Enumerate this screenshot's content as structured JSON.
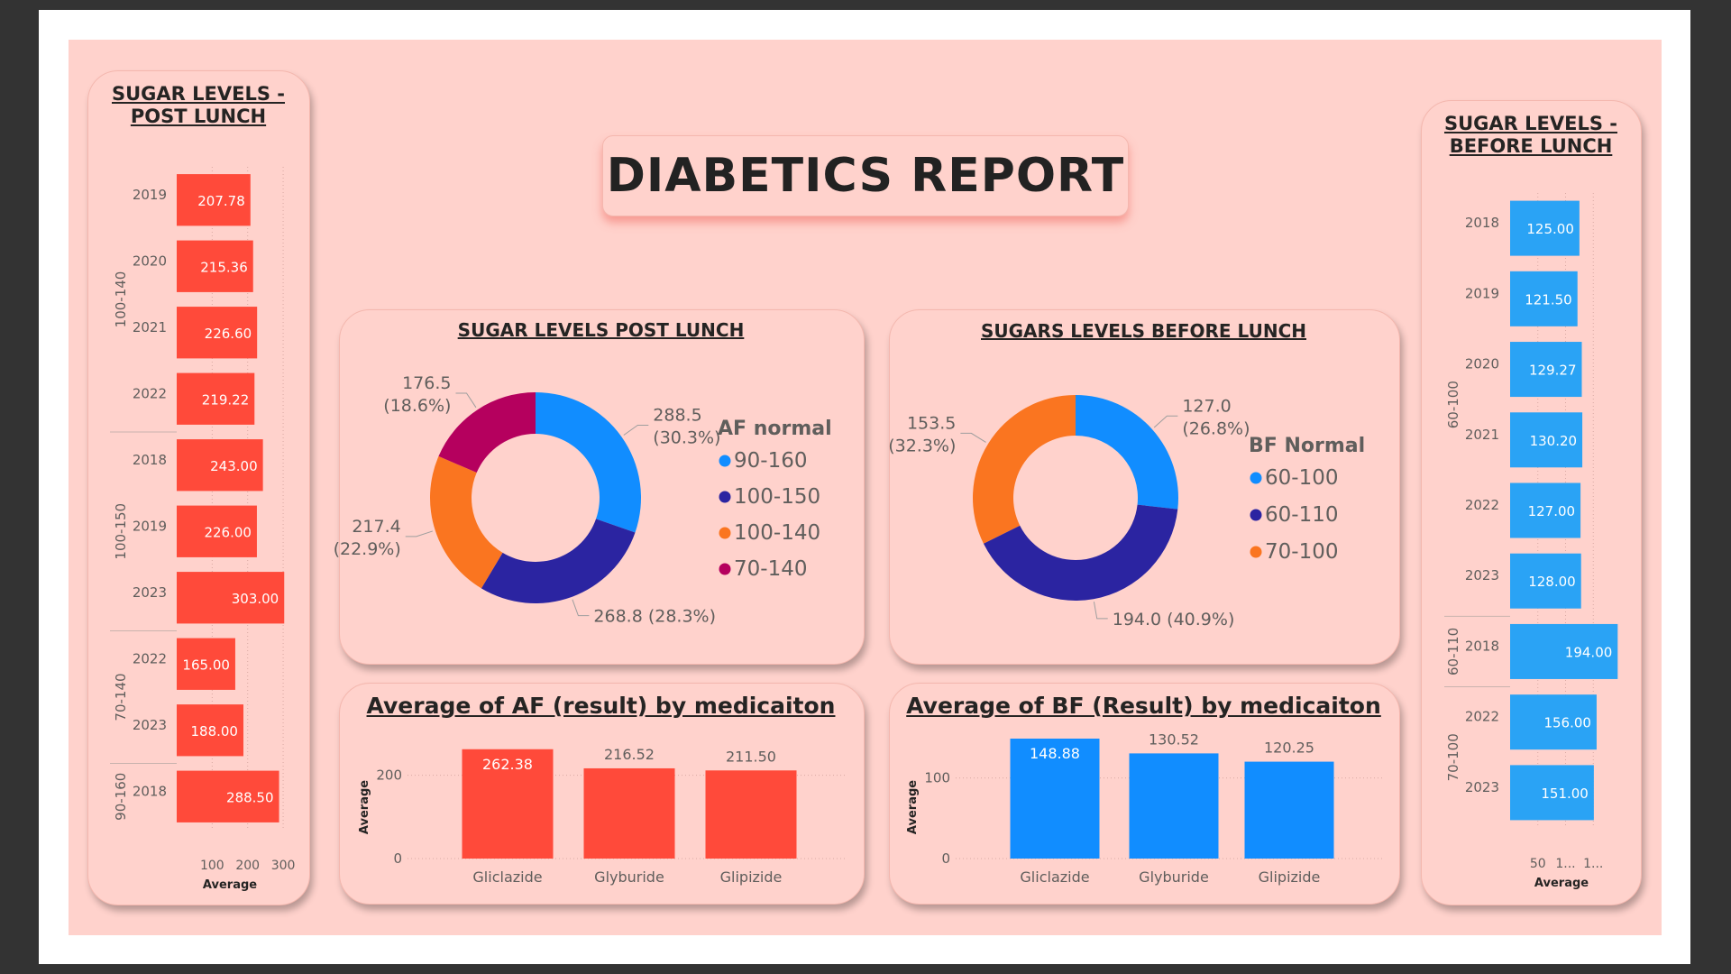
{
  "title": "DIABETICS REPORT",
  "colors": {
    "canvas": "#ffd2cc",
    "red": "#ff4a3a",
    "blue": "#2aa3f5",
    "c90_160": "#118dff",
    "c100_150": "#2b24a1",
    "c100_140": "#fa7520",
    "c70_140": "#b5005e"
  },
  "left_panel": {
    "title_line1": "SUGAR LEVELS -",
    "title_line2": "POST LUNCH"
  },
  "right_panel": {
    "title_line1": "SUGAR LEVELS -",
    "title_line2": "BEFORE LUNCH"
  },
  "donut_af": {
    "title": "SUGAR LEVELS POST LUNCH"
  },
  "donut_bf": {
    "title": "SUGARS LEVELS BEFORE LUNCH"
  },
  "bar_af": {
    "title": "Average of AF (result) by medicaiton"
  },
  "bar_bf": {
    "title": "Average of BF (Result) by medicaiton"
  },
  "chart_data": [
    {
      "id": "post_lunch_by_year",
      "type": "bar",
      "orientation": "horizontal",
      "title": "SUGAR LEVELS - POST LUNCH",
      "xlabel": "Average",
      "xticks": [
        "100",
        "200",
        "300"
      ],
      "xlim": [
        0,
        310
      ],
      "groups": [
        {
          "name": "100-140",
          "rows": [
            {
              "year": "2019",
              "value": 207.78,
              "label": "207.78"
            },
            {
              "year": "2020",
              "value": 215.36,
              "label": "215.36"
            },
            {
              "year": "2021",
              "value": 226.6,
              "label": "226.60"
            },
            {
              "year": "2022",
              "value": 219.22,
              "label": "219.22"
            }
          ]
        },
        {
          "name": "100-150",
          "rows": [
            {
              "year": "2018",
              "value": 243.0,
              "label": "243.00"
            },
            {
              "year": "2019",
              "value": 226.0,
              "label": "226.00"
            },
            {
              "year": "2023",
              "value": 303.0,
              "label": "303.00"
            }
          ]
        },
        {
          "name": "70-140",
          "rows": [
            {
              "year": "2022",
              "value": 165.0,
              "label": "165.00"
            },
            {
              "year": "2023",
              "value": 188.0,
              "label": "188.00"
            }
          ]
        },
        {
          "name": "90-160",
          "rows": [
            {
              "year": "2018",
              "value": 288.5,
              "label": "288.50"
            }
          ]
        }
      ]
    },
    {
      "id": "before_lunch_by_year",
      "type": "bar",
      "orientation": "horizontal",
      "title": "SUGAR LEVELS - BEFORE LUNCH",
      "xlabel": "Average",
      "xticks": [
        "50",
        "1...",
        "1..."
      ],
      "xlim": [
        0,
        200
      ],
      "groups": [
        {
          "name": "60-100",
          "rows": [
            {
              "year": "2018",
              "value": 125.0,
              "label": "125.00"
            },
            {
              "year": "2019",
              "value": 121.5,
              "label": "121.50"
            },
            {
              "year": "2020",
              "value": 129.27,
              "label": "129.27"
            },
            {
              "year": "2021",
              "value": 130.2,
              "label": "130.20"
            },
            {
              "year": "2022",
              "value": 127.0,
              "label": "127.00"
            },
            {
              "year": "2023",
              "value": 128.0,
              "label": "128.00"
            }
          ]
        },
        {
          "name": "60-110",
          "rows": [
            {
              "year": "2018",
              "value": 194.0,
              "label": "194.00"
            }
          ]
        },
        {
          "name": "70-100",
          "rows": [
            {
              "year": "2022",
              "value": 156.0,
              "label": "156.00"
            },
            {
              "year": "2023",
              "value": 151.0,
              "label": "151.00"
            }
          ]
        }
      ]
    },
    {
      "id": "af_donut",
      "type": "pie",
      "title": "SUGAR LEVELS POST LUNCH",
      "legend_title": "AF normal",
      "slices": [
        {
          "name": "90-160",
          "value": 288.5,
          "pct": "30.3%",
          "color": "#118dff",
          "label1": "288.5",
          "label2": "(30.3%)"
        },
        {
          "name": "100-150",
          "value": 268.8,
          "pct": "28.3%",
          "color": "#2b24a1",
          "label1": "268.8 (28.3%)",
          "label2": ""
        },
        {
          "name": "100-140",
          "value": 217.4,
          "pct": "22.9%",
          "color": "#fa7520",
          "label1": "217.4",
          "label2": "(22.9%)"
        },
        {
          "name": "70-140",
          "value": 176.5,
          "pct": "18.6%",
          "color": "#b5005e",
          "label1": "176.5",
          "label2": "(18.6%)"
        }
      ]
    },
    {
      "id": "bf_donut",
      "type": "pie",
      "title": "SUGARS LEVELS BEFORE LUNCH",
      "legend_title": "BF Normal",
      "slices": [
        {
          "name": "60-100",
          "value": 127.0,
          "pct": "26.8%",
          "color": "#118dff",
          "label1": "127.0",
          "label2": "(26.8%)"
        },
        {
          "name": "60-110",
          "value": 194.0,
          "pct": "40.9%",
          "color": "#2b24a1",
          "label1": "194.0 (40.9%)",
          "label2": ""
        },
        {
          "name": "70-100",
          "value": 153.5,
          "pct": "32.3%",
          "color": "#fa7520",
          "label1": "153.5",
          "label2": "(32.3%)"
        }
      ]
    },
    {
      "id": "af_by_medication",
      "type": "bar",
      "title": "Average of AF (result) by medicaiton",
      "ylabel": "Average",
      "categories": [
        "Gliclazide",
        "Glyburide",
        "Glipizide"
      ],
      "values": [
        262.38,
        216.52,
        211.5
      ],
      "labels": [
        "262.38",
        "216.52",
        "211.50"
      ],
      "yticks": [
        "0",
        "200"
      ],
      "ylim": [
        0,
        290
      ]
    },
    {
      "id": "bf_by_medication",
      "type": "bar",
      "title": "Average of BF (Result) by medicaiton",
      "ylabel": "Average",
      "categories": [
        "Gliclazide",
        "Glyburide",
        "Glipizide"
      ],
      "values": [
        148.88,
        130.52,
        120.25
      ],
      "labels": [
        "148.88",
        "130.52",
        "120.25"
      ],
      "yticks": [
        "0",
        "100"
      ],
      "ylim": [
        0,
        150
      ]
    }
  ]
}
